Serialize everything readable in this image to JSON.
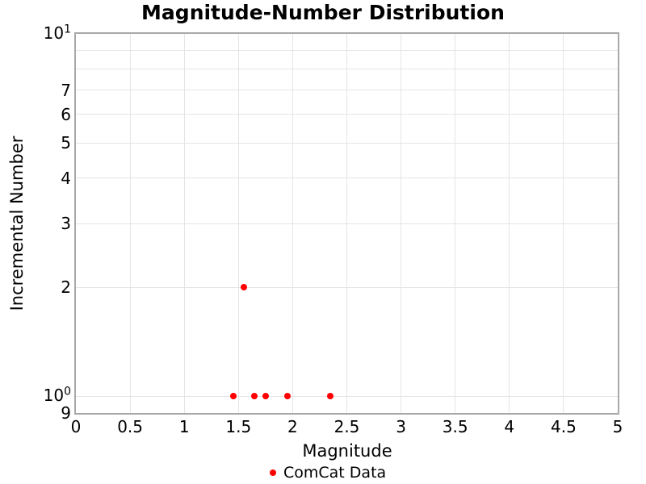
{
  "chart_data": {
    "type": "scatter",
    "title": "Magnitude-Number Distribution",
    "xlabel": "Magnitude",
    "ylabel": "Incremental Number",
    "xlim": [
      0,
      5
    ],
    "ylim": [
      0.9,
      10
    ],
    "yscale": "log",
    "grid": true,
    "legend": {
      "label": "ComCat Data",
      "position": "bottom-center"
    },
    "series": [
      {
        "name": "ComCat Data",
        "marker": "circle",
        "color": "#ff0000",
        "points": [
          {
            "x": 1.45,
            "y": 1
          },
          {
            "x": 1.55,
            "y": 2
          },
          {
            "x": 1.65,
            "y": 1
          },
          {
            "x": 1.75,
            "y": 1
          },
          {
            "x": 1.95,
            "y": 1
          },
          {
            "x": 2.35,
            "y": 1
          }
        ]
      }
    ],
    "x_ticks": [
      {
        "value": 0,
        "label": "0"
      },
      {
        "value": 0.5,
        "label": "0.5"
      },
      {
        "value": 1,
        "label": "1"
      },
      {
        "value": 1.5,
        "label": "1.5"
      },
      {
        "value": 2,
        "label": "2"
      },
      {
        "value": 2.5,
        "label": "2.5"
      },
      {
        "value": 3,
        "label": "3"
      },
      {
        "value": 3.5,
        "label": "3.5"
      },
      {
        "value": 4,
        "label": "4"
      },
      {
        "value": 4.5,
        "label": "4.5"
      },
      {
        "value": 5,
        "label": "5"
      }
    ],
    "y_ticks": {
      "major": [
        {
          "value": 10,
          "base": "10",
          "exponent": "1"
        },
        {
          "value": 1,
          "base": "10",
          "exponent": "0"
        }
      ],
      "minor_labeled": [
        {
          "value": 7,
          "label": "7"
        },
        {
          "value": 6,
          "label": "6"
        },
        {
          "value": 5,
          "label": "5"
        },
        {
          "value": 4,
          "label": "4"
        },
        {
          "value": 3,
          "label": "3"
        },
        {
          "value": 2,
          "label": "2"
        },
        {
          "value": 0.9,
          "label": "9"
        }
      ],
      "gridline_values": [
        9,
        8,
        7,
        6,
        5,
        4,
        3,
        2,
        1
      ]
    },
    "colors": {
      "marker": "#ff0000",
      "gridline": "#e5e5e5",
      "spine": "#a9a9a9",
      "text": "#000000",
      "background": "#ffffff"
    }
  }
}
